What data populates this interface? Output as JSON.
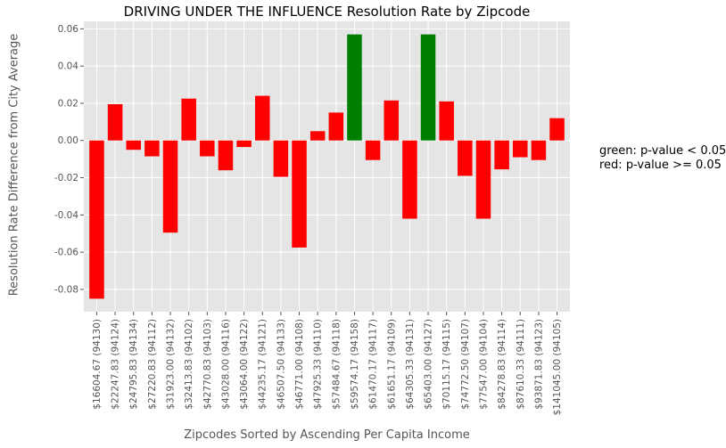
{
  "chart_data": {
    "type": "bar",
    "title": "DRIVING UNDER THE INFLUENCE Resolution Rate by Zipcode",
    "xlabel": "Zipcodes Sorted by Ascending Per Capita Income",
    "ylabel": "Resolution Rate Difference from City Average",
    "ylim": [
      -0.092,
      0.064
    ],
    "yticks": [
      -0.08,
      -0.06,
      -0.04,
      -0.02,
      0.0,
      0.02,
      0.04,
      0.06
    ],
    "ytick_labels": [
      "-0.08",
      "-0.06",
      "-0.04",
      "-0.02",
      "0.00",
      "0.02",
      "0.04",
      "0.06"
    ],
    "grid": true,
    "categories": [
      "$16604.67 (94130)",
      "$22247.83 (94124)",
      "$24795.83 (94134)",
      "$27220.83 (94112)",
      "$31923.00 (94132)",
      "$32413.83 (94102)",
      "$42770.83 (94103)",
      "$43028.00 (94116)",
      "$43064.00 (94122)",
      "$44235.17 (94121)",
      "$46507.50 (94133)",
      "$46771.00 (94108)",
      "$47925.33 (94110)",
      "$57484.67 (94118)",
      "$59574.17 (94158)",
      "$61470.17 (94117)",
      "$61651.17 (94109)",
      "$64305.33 (94131)",
      "$65403.00 (94127)",
      "$70115.17 (94115)",
      "$74772.50 (94107)",
      "$77547.00 (94104)",
      "$84278.83 (94114)",
      "$87610.33 (94111)",
      "$93871.83 (94123)",
      "$141045.00 (94105)"
    ],
    "values": [
      -0.085,
      0.0195,
      -0.005,
      -0.0085,
      -0.0495,
      0.0225,
      -0.0085,
      -0.016,
      -0.0035,
      0.024,
      -0.0195,
      -0.0575,
      0.005,
      0.015,
      0.057,
      -0.0105,
      0.0215,
      -0.042,
      0.057,
      0.021,
      -0.019,
      -0.042,
      -0.0155,
      -0.009,
      -0.0105,
      0.012
    ],
    "bar_colors": [
      "red",
      "red",
      "red",
      "red",
      "red",
      "red",
      "red",
      "red",
      "red",
      "red",
      "red",
      "red",
      "red",
      "red",
      "green",
      "red",
      "red",
      "red",
      "green",
      "red",
      "red",
      "red",
      "red",
      "red",
      "red",
      "red"
    ],
    "colors": {
      "significant": "#008000",
      "not_significant": "#ff0000",
      "plot_bg": "#e5e5e5",
      "grid": "#ffffff"
    },
    "annotations": [
      "green: p-value < 0.05",
      "red: p-value >= 0.05"
    ]
  }
}
